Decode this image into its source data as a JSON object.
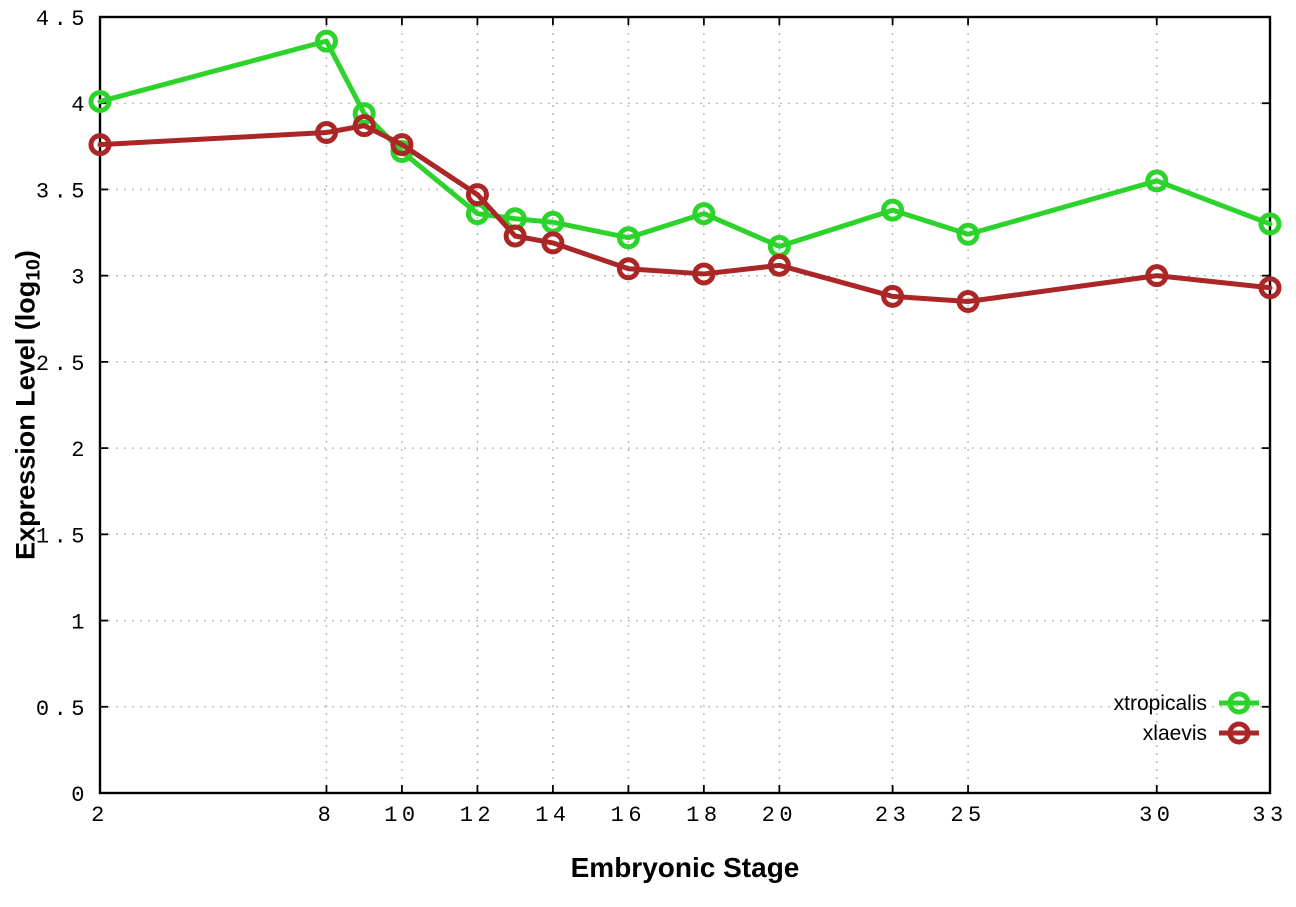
{
  "chart_data": {
    "type": "line",
    "title": "",
    "xlabel": "Embryonic Stage",
    "ylabel": "Expression Level (log10)",
    "ylabel_parts": {
      "main": "Expression Level (log",
      "sub": "10",
      "close": ")"
    },
    "x": [
      2,
      8,
      9,
      10,
      12,
      13,
      14,
      16,
      18,
      20,
      23,
      25,
      30,
      33
    ],
    "xlim": [
      2,
      33
    ],
    "ylim": [
      0,
      4.5
    ],
    "xticks": [
      2,
      8,
      10,
      12,
      14,
      16,
      18,
      20,
      23,
      25,
      30,
      33
    ],
    "xtick_labels": [
      "2",
      "8",
      "10",
      "12",
      "14",
      "16",
      "18",
      "20",
      "23",
      "25",
      "30",
      "33"
    ],
    "yticks": [
      0,
      0.5,
      1,
      1.5,
      2,
      2.5,
      3,
      3.5,
      4,
      4.5
    ],
    "ytick_labels": [
      "0",
      "0.5",
      "1",
      "1.5",
      "2",
      "2.5",
      "3",
      "3.5",
      "4",
      "4.5"
    ],
    "grid": true,
    "legend_position": "bottom-right",
    "series": [
      {
        "name": "xtropicalis",
        "color": "#2bd32b",
        "marker": "open-circle",
        "values": [
          4.01,
          4.36,
          3.94,
          3.72,
          3.36,
          3.33,
          3.31,
          3.22,
          3.36,
          3.17,
          3.38,
          3.24,
          3.55,
          3.3
        ]
      },
      {
        "name": "xlaevis",
        "color": "#ab2626",
        "marker": "open-circle",
        "values": [
          3.76,
          3.83,
          3.87,
          3.76,
          3.47,
          3.23,
          3.19,
          3.04,
          3.01,
          3.06,
          2.88,
          2.85,
          3.0,
          2.93
        ]
      }
    ]
  },
  "colors": {
    "axis": "#000000",
    "grid": "#b5b5b5",
    "background": "#ffffff",
    "text": "#000000"
  }
}
